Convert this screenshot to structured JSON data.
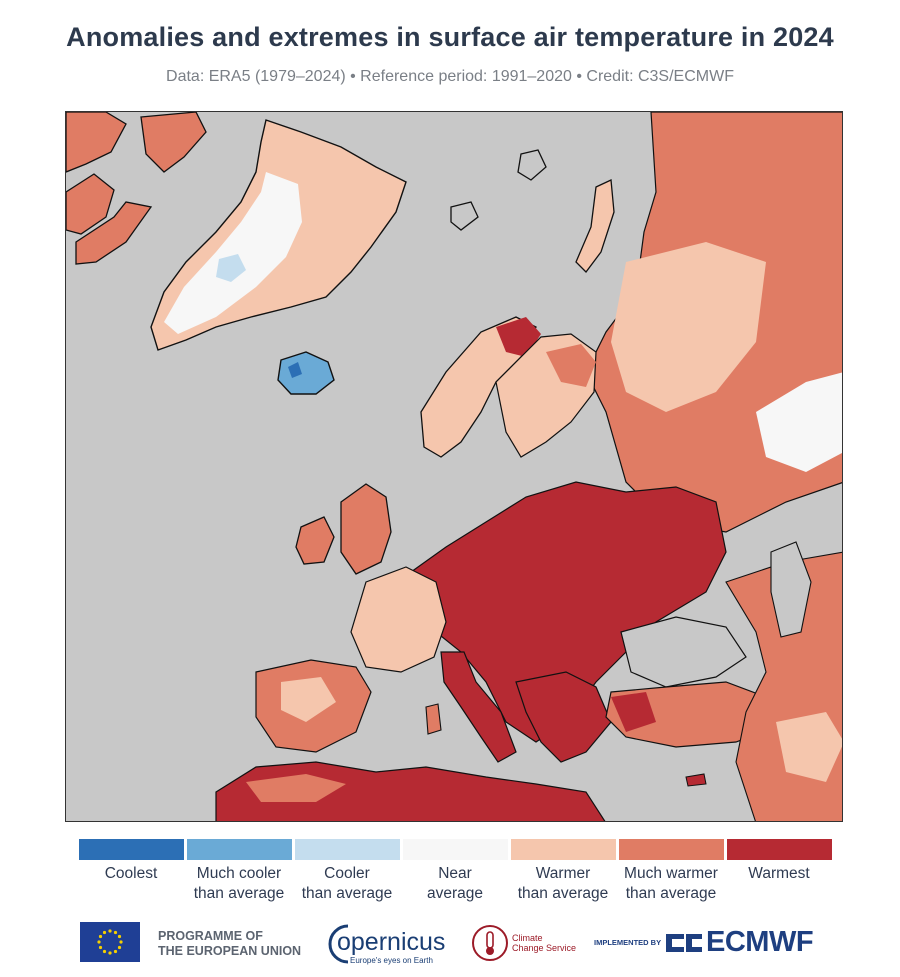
{
  "header": {
    "title": "Anomalies and extremes in surface air temperature in 2024",
    "subtitle": "Data: ERA5 (1979–2024) • Reference period: 1991–2020 • Credit: C3S/ECMWF"
  },
  "map": {
    "region": "Europe",
    "colors": {
      "sea": "#c8c8c8",
      "coolest": "#2c6fb5",
      "much_cooler": "#6aaad6",
      "cooler": "#c4ddee",
      "near_average": "#f7f7f7",
      "warmer": "#f5c6ad",
      "much_warmer": "#e07c64",
      "warmest": "#b62a33"
    }
  },
  "legend": {
    "items": [
      {
        "label_line1": "Coolest",
        "label_line2": "",
        "color": "#2c6fb5"
      },
      {
        "label_line1": "Much cooler",
        "label_line2": "than average",
        "color": "#6aaad6"
      },
      {
        "label_line1": "Cooler",
        "label_line2": "than average",
        "color": "#c4ddee"
      },
      {
        "label_line1": "Near",
        "label_line2": "average",
        "color": "#f7f7f7"
      },
      {
        "label_line1": "Warmer",
        "label_line2": "than average",
        "color": "#f5c6ad"
      },
      {
        "label_line1": "Much warmer",
        "label_line2": "than average",
        "color": "#e07c64"
      },
      {
        "label_line1": "Warmest",
        "label_line2": "",
        "color": "#b62a33"
      }
    ]
  },
  "footer": {
    "programme_line1": "PROGRAMME OF",
    "programme_line2": "THE EUROPEAN UNION",
    "copernicus": "opernicus",
    "copernicus_tagline": "Europe's eyes on Earth",
    "c3s_line1": "Climate",
    "c3s_line2": "Change Service",
    "implemented_by": "IMPLEMENTED BY",
    "ecmwf": "ECMWF"
  }
}
